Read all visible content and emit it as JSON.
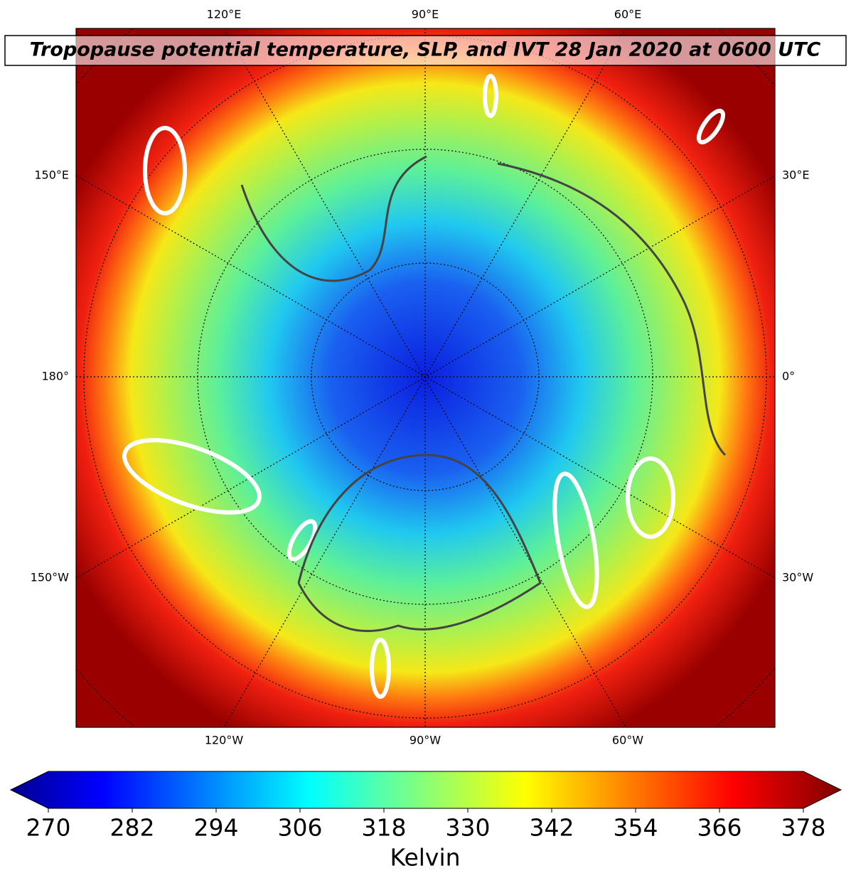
{
  "title": "Tropopause potential temperature, SLP, and IVT 28 Jan 2020 at 0600 UTC",
  "map": {
    "top_labels": [
      "120°E",
      "90°E",
      "60°E"
    ],
    "bottom_labels": [
      "120°W",
      "90°W",
      "60°W"
    ],
    "left_labels": [
      "150°E",
      "180°",
      "150°W"
    ],
    "right_labels": [
      "30°E",
      "0°",
      "30°W"
    ]
  },
  "colorbar": {
    "label": "Kelvin",
    "lim": [
      270,
      378
    ],
    "ticks": [
      270,
      282,
      294,
      306,
      318,
      330,
      342,
      354,
      366,
      378
    ]
  }
}
